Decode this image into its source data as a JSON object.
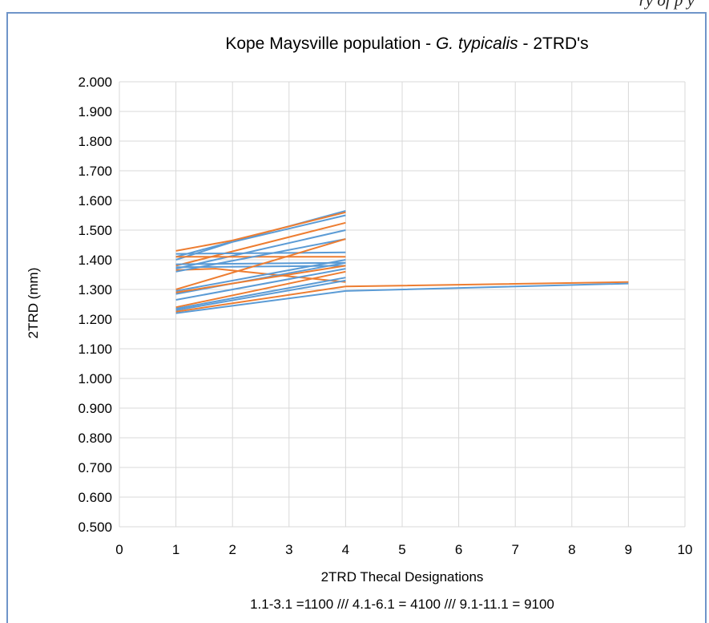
{
  "header_fragment": "ry          of          p          y",
  "chart_data": {
    "type": "line",
    "title_parts": [
      {
        "text": "Kope Maysville population - ",
        "italic": false
      },
      {
        "text": "G. typicalis",
        "italic": true
      },
      {
        "text": " - 2TRD's",
        "italic": false
      }
    ],
    "xlabel": "2TRD Thecal Designations",
    "xlabel2": "1.1-3.1 =1100 /// 4.1-6.1 = 4100 /// 9.1-11.1 = 9100",
    "ylabel": "2TRD (mm)",
    "xlim": [
      0,
      10
    ],
    "ylim": [
      0.5,
      2.0
    ],
    "x_ticks": [
      "0",
      "1",
      "2",
      "3",
      "4",
      "5",
      "6",
      "7",
      "8",
      "9",
      "10"
    ],
    "y_ticks": [
      "0.500",
      "0.600",
      "0.700",
      "0.800",
      "0.900",
      "1.000",
      "1.100",
      "1.200",
      "1.300",
      "1.400",
      "1.500",
      "1.600",
      "1.700",
      "1.800",
      "1.900",
      "2.000"
    ],
    "grid": true,
    "colors": {
      "blue": "#5b9bd5",
      "orange": "#ed7d31"
    },
    "series": [
      {
        "color": "blue",
        "x": [
          1,
          4
        ],
        "y": [
          1.41,
          1.565
        ]
      },
      {
        "color": "orange",
        "x": [
          1,
          2,
          4
        ],
        "y": [
          1.43,
          1.465,
          1.56
        ]
      },
      {
        "color": "blue",
        "x": [
          1,
          2,
          4
        ],
        "y": [
          1.4,
          1.46,
          1.55
        ]
      },
      {
        "color": "orange",
        "x": [
          1,
          4
        ],
        "y": [
          1.38,
          1.525
        ]
      },
      {
        "color": "blue",
        "x": [
          1,
          4
        ],
        "y": [
          1.37,
          1.5
        ]
      },
      {
        "color": "blue",
        "x": [
          1,
          4
        ],
        "y": [
          1.42,
          1.425
        ]
      },
      {
        "color": "orange",
        "x": [
          1,
          4
        ],
        "y": [
          1.41,
          1.41
        ]
      },
      {
        "color": "blue",
        "x": [
          1,
          4
        ],
        "y": [
          1.385,
          1.39
        ]
      },
      {
        "color": "blue",
        "x": [
          1,
          4
        ],
        "y": [
          1.375,
          1.38
        ]
      },
      {
        "color": "orange",
        "x": [
          1,
          1.7,
          4
        ],
        "y": [
          1.365,
          1.37,
          1.325
        ]
      },
      {
        "color": "blue",
        "x": [
          1,
          4
        ],
        "y": [
          1.36,
          1.47
        ]
      },
      {
        "color": "orange",
        "x": [
          1,
          4
        ],
        "y": [
          1.3,
          1.47
        ]
      },
      {
        "color": "blue",
        "x": [
          1,
          4
        ],
        "y": [
          1.295,
          1.4
        ]
      },
      {
        "color": "blue",
        "x": [
          1,
          4
        ],
        "y": [
          1.285,
          1.39
        ]
      },
      {
        "color": "orange",
        "x": [
          1,
          4
        ],
        "y": [
          1.29,
          1.38
        ]
      },
      {
        "color": "blue",
        "x": [
          1,
          4
        ],
        "y": [
          1.265,
          1.37
        ]
      },
      {
        "color": "orange",
        "x": [
          1,
          4
        ],
        "y": [
          1.24,
          1.36
        ]
      },
      {
        "color": "blue",
        "x": [
          1,
          4
        ],
        "y": [
          1.235,
          1.34
        ]
      },
      {
        "color": "blue",
        "x": [
          1,
          4
        ],
        "y": [
          1.23,
          1.33
        ]
      },
      {
        "color": "orange",
        "x": [
          1,
          4,
          9
        ],
        "y": [
          1.225,
          1.31,
          1.325
        ]
      },
      {
        "color": "blue",
        "x": [
          1,
          4,
          9
        ],
        "y": [
          1.22,
          1.295,
          1.32
        ]
      }
    ]
  }
}
